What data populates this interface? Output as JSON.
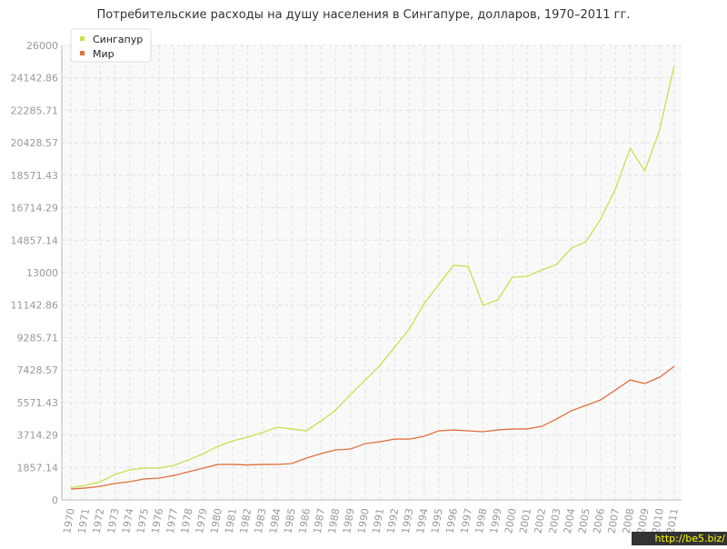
{
  "chart_data": {
    "type": "line",
    "title": "Потребительские расходы на душу населения в Сингапуре, долларов, 1970–2011 гг.",
    "x": [
      1970,
      1971,
      1972,
      1973,
      1974,
      1975,
      1976,
      1977,
      1978,
      1979,
      1980,
      1981,
      1982,
      1983,
      1984,
      1985,
      1986,
      1987,
      1988,
      1989,
      1990,
      1991,
      1992,
      1993,
      1994,
      1995,
      1996,
      1997,
      1998,
      1999,
      2000,
      2001,
      2002,
      2003,
      2004,
      2005,
      2006,
      2007,
      2008,
      2009,
      2010,
      2011
    ],
    "xlim": [
      1970,
      2011
    ],
    "series": [
      {
        "name": "Сингапур",
        "color": "#c9e04c",
        "values": [
          700,
          830,
          1040,
          1460,
          1720,
          1820,
          1820,
          1980,
          2290,
          2650,
          3070,
          3380,
          3590,
          3850,
          4160,
          4060,
          3950,
          4520,
          5150,
          6030,
          6860,
          7700,
          8740,
          9780,
          11230,
          12320,
          13420,
          13360,
          11130,
          11440,
          12740,
          12790,
          13160,
          13470,
          14400,
          14770,
          16070,
          17780,
          20120,
          18820,
          21160,
          24860
        ]
      },
      {
        "name": "Мир",
        "color": "#e0703e",
        "values": [
          620,
          680,
          780,
          940,
          1040,
          1200,
          1250,
          1400,
          1610,
          1820,
          2030,
          2030,
          2000,
          2030,
          2030,
          2080,
          2390,
          2650,
          2860,
          2910,
          3220,
          3330,
          3480,
          3480,
          3640,
          3950,
          4000,
          3950,
          3900,
          4000,
          4060,
          4060,
          4210,
          4630,
          5100,
          5410,
          5720,
          6290,
          6860,
          6660,
          7020,
          7640
        ]
      }
    ],
    "ylim": [
      0,
      26000
    ],
    "yticks": [
      0,
      1857.14,
      3714.29,
      5571.43,
      7428.57,
      9285.71,
      11142.86,
      13000,
      14857.14,
      16714.29,
      18571.43,
      20428.57,
      22285.71,
      24142.86,
      26000
    ],
    "grid": true,
    "legend": "top-left",
    "watermark": "http://be5.biz/"
  }
}
